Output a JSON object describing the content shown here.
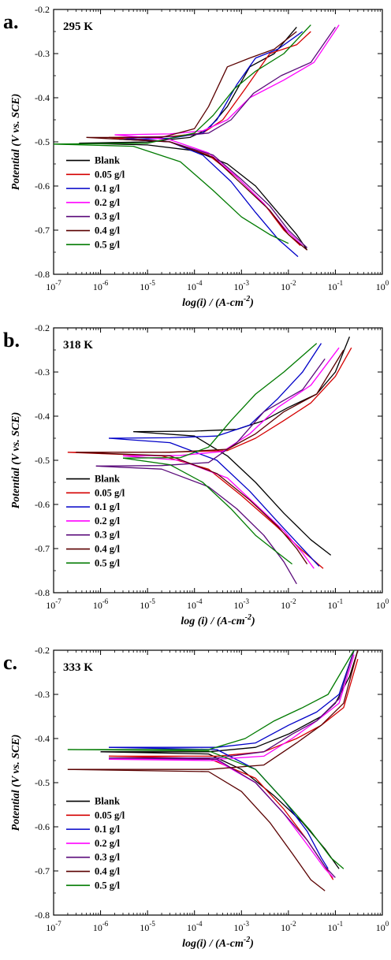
{
  "chart_data": [
    {
      "type": "line",
      "panel_label": "a.",
      "annotation": "295 K",
      "xlabel": "log(i) / (A-cm",
      "xlabel_sup": "-2",
      "xlabel_close": ")",
      "ylabel": "Potential (V vs. SCE)",
      "xscale": "log",
      "xlim": [
        1e-07,
        1
      ],
      "ylim": [
        -0.8,
        -0.2
      ],
      "xtick_exponents": [
        "-7",
        "-6",
        "-5",
        "-4",
        "-3",
        "-2",
        "-1",
        "0"
      ],
      "ytick_labels": [
        "-0.2",
        "-0.3",
        "-0.4",
        "-0.5",
        "-0.6",
        "-0.7",
        "-0.8"
      ],
      "legend_position": "bottom-left",
      "grid": false,
      "series": [
        {
          "name": "Blank",
          "color": "#000000",
          "x": [
            3.5e-07,
            1e-05,
            8e-05,
            0.0002,
            0.0005,
            0.0015,
            0.005,
            0.015
          ],
          "y": [
            -0.503,
            -0.5,
            -0.49,
            -0.47,
            -0.42,
            -0.33,
            -0.3,
            -0.24
          ],
          "x_cat": [
            3.5e-07,
            1e-05,
            0.0001,
            0.0005,
            0.002,
            0.006,
            0.015,
            0.025
          ],
          "y_cat": [
            -0.503,
            -0.507,
            -0.52,
            -0.55,
            -0.6,
            -0.66,
            -0.71,
            -0.745
          ]
        },
        {
          "name": "0.05 g/l",
          "color": "#d40000",
          "x": [
            1.5e-06,
            3e-05,
            0.00015,
            0.0004,
            0.0012,
            0.004,
            0.015,
            0.03
          ],
          "y": [
            -0.49,
            -0.488,
            -0.48,
            -0.45,
            -0.38,
            -0.3,
            -0.28,
            -0.25
          ],
          "x_cat": [
            1.5e-06,
            3e-05,
            0.0002,
            0.0008,
            0.003,
            0.008,
            0.018
          ],
          "y_cat": [
            -0.49,
            -0.5,
            -0.53,
            -0.58,
            -0.64,
            -0.7,
            -0.735
          ]
        },
        {
          "name": "0.1 g/l",
          "color": "#0000c8",
          "x": [
            2.5e-06,
            3e-05,
            0.00015,
            0.0003,
            0.0008,
            0.002,
            0.006,
            0.02
          ],
          "y": [
            -0.494,
            -0.492,
            -0.48,
            -0.45,
            -0.37,
            -0.31,
            -0.29,
            -0.25
          ],
          "x_cat": [
            2.5e-06,
            3e-05,
            0.00015,
            0.0006,
            0.002,
            0.006,
            0.016
          ],
          "y_cat": [
            -0.494,
            -0.5,
            -0.53,
            -0.59,
            -0.66,
            -0.72,
            -0.76
          ]
        },
        {
          "name": "0.2 g/l",
          "color": "#ff00ff",
          "x": [
            2e-06,
            3e-05,
            0.00015,
            0.0005,
            0.0015,
            0.008,
            0.035,
            0.12
          ],
          "y": [
            -0.484,
            -0.482,
            -0.475,
            -0.45,
            -0.4,
            -0.36,
            -0.32,
            -0.235
          ],
          "x_cat": [
            2e-06,
            3e-05,
            0.0002,
            0.0008,
            0.003,
            0.009,
            0.02
          ],
          "y_cat": [
            -0.484,
            -0.495,
            -0.525,
            -0.58,
            -0.64,
            -0.7,
            -0.735
          ]
        },
        {
          "name": "0.3 g/l",
          "color": "#5a0a7a",
          "x": [
            3e-06,
            4e-05,
            0.0002,
            0.0006,
            0.0018,
            0.007,
            0.03,
            0.1
          ],
          "y": [
            -0.49,
            -0.488,
            -0.48,
            -0.45,
            -0.39,
            -0.35,
            -0.32,
            -0.24
          ],
          "x_cat": [
            3e-06,
            3e-05,
            0.00025,
            0.001,
            0.004,
            0.01,
            0.025
          ],
          "y_cat": [
            -0.49,
            -0.5,
            -0.53,
            -0.585,
            -0.645,
            -0.7,
            -0.74
          ]
        },
        {
          "name": "0.4 g/l",
          "color": "#5a0000",
          "x": [
            5e-07,
            2e-05,
            0.0001,
            0.0002,
            0.0005,
            0.0015,
            0.005,
            0.015
          ],
          "y": [
            -0.49,
            -0.49,
            -0.47,
            -0.42,
            -0.33,
            -0.31,
            -0.29,
            -0.25
          ],
          "x_cat": [
            5e-07,
            3e-05,
            0.00025,
            0.001,
            0.004,
            0.01,
            0.025
          ],
          "y_cat": [
            -0.49,
            -0.5,
            -0.535,
            -0.595,
            -0.655,
            -0.71,
            -0.745
          ]
        },
        {
          "name": "0.5 g/l",
          "color": "#007a00",
          "x": [
            1e-07,
            1e-05,
            0.0001,
            0.00025,
            0.0007,
            0.002,
            0.008,
            0.03
          ],
          "y": [
            -0.505,
            -0.503,
            -0.48,
            -0.44,
            -0.38,
            -0.34,
            -0.3,
            -0.235
          ],
          "x_cat": [
            1e-07,
            5e-06,
            5e-05,
            0.00025,
            0.001,
            0.004,
            0.01
          ],
          "y_cat": [
            -0.505,
            -0.51,
            -0.545,
            -0.61,
            -0.67,
            -0.71,
            -0.73
          ]
        }
      ]
    },
    {
      "type": "line",
      "panel_label": "b.",
      "annotation": "318 K",
      "xlabel": "log (i) / (A-cm",
      "xlabel_sup": "-2",
      "xlabel_close": ")",
      "ylabel": "Potential (V vs. SCE)",
      "xscale": "log",
      "xlim": [
        1e-07,
        1
      ],
      "ylim": [
        -0.8,
        -0.2
      ],
      "xtick_exponents": [
        "-7",
        "-6",
        "-5",
        "-4",
        "-3",
        "-2",
        "-1",
        "0"
      ],
      "ytick_labels": [
        "-0.2",
        "-0.3",
        "-0.4",
        "-0.5",
        "-0.6",
        "-0.7",
        "-0.8"
      ],
      "legend_position": "bottom-left",
      "grid": false,
      "series": [
        {
          "name": "Blank",
          "color": "#000000",
          "x": [
            5e-06,
            0.0001,
            0.0008,
            0.003,
            0.01,
            0.04,
            0.1,
            0.2
          ],
          "y": [
            -0.435,
            -0.434,
            -0.43,
            -0.41,
            -0.38,
            -0.35,
            -0.3,
            -0.22
          ],
          "x_cat": [
            5e-06,
            0.0001,
            0.0005,
            0.002,
            0.008,
            0.03,
            0.08
          ],
          "y_cat": [
            -0.435,
            -0.445,
            -0.49,
            -0.55,
            -0.62,
            -0.68,
            -0.715
          ]
        },
        {
          "name": "0.05 g/l",
          "color": "#d40000",
          "x": [
            2e-07,
            2e-05,
            0.0005,
            0.002,
            0.008,
            0.03,
            0.1,
            0.22
          ],
          "y": [
            -0.482,
            -0.482,
            -0.478,
            -0.45,
            -0.41,
            -0.37,
            -0.31,
            -0.245
          ],
          "x_cat": [
            2e-07,
            2e-05,
            0.0002,
            0.001,
            0.005,
            0.02,
            0.055
          ],
          "y_cat": [
            -0.482,
            -0.49,
            -0.52,
            -0.58,
            -0.645,
            -0.705,
            -0.745
          ]
        },
        {
          "name": "0.1 g/l",
          "color": "#0000c8",
          "x": [
            1.5e-06,
            3e-05,
            0.0003,
            0.0015,
            0.006,
            0.02,
            0.05
          ],
          "y": [
            -0.45,
            -0.449,
            -0.445,
            -0.42,
            -0.36,
            -0.3,
            -0.235
          ],
          "x_cat": [
            1.5e-06,
            3e-05,
            0.0003,
            0.0015,
            0.006,
            0.02,
            0.045
          ],
          "y_cat": [
            -0.45,
            -0.46,
            -0.5,
            -0.57,
            -0.64,
            -0.7,
            -0.74
          ]
        },
        {
          "name": "0.2 g/l",
          "color": "#ff00ff",
          "x": [
            3e-06,
            5e-05,
            0.0004,
            0.0015,
            0.006,
            0.03,
            0.12
          ],
          "y": [
            -0.49,
            -0.489,
            -0.48,
            -0.44,
            -0.38,
            -0.33,
            -0.245
          ],
          "x_cat": [
            3e-06,
            5e-05,
            0.0005,
            0.002,
            0.008,
            0.02,
            0.035
          ],
          "y_cat": [
            -0.49,
            -0.5,
            -0.54,
            -0.6,
            -0.66,
            -0.71,
            -0.745
          ]
        },
        {
          "name": "0.3 g/l",
          "color": "#5a0a7a",
          "x": [
            8e-07,
            2e-05,
            0.0002,
            0.0008,
            0.003,
            0.02,
            0.06
          ],
          "y": [
            -0.513,
            -0.512,
            -0.505,
            -0.46,
            -0.39,
            -0.34,
            -0.27
          ],
          "x_cat": [
            8e-07,
            2e-05,
            0.0002,
            0.0008,
            0.003,
            0.008,
            0.015
          ],
          "y_cat": [
            -0.513,
            -0.52,
            -0.56,
            -0.61,
            -0.67,
            -0.73,
            -0.78
          ]
        },
        {
          "name": "0.4 g/l",
          "color": "#5a0000",
          "x": [
            3e-07,
            3e-05,
            0.0005,
            0.002,
            0.008,
            0.04,
            0.15
          ],
          "y": [
            -0.482,
            -0.482,
            -0.475,
            -0.44,
            -0.39,
            -0.35,
            -0.25
          ],
          "x_cat": [
            3e-07,
            3e-05,
            0.0003,
            0.0015,
            0.006,
            0.015,
            0.025
          ],
          "y_cat": [
            -0.482,
            -0.49,
            -0.53,
            -0.59,
            -0.65,
            -0.7,
            -0.735
          ]
        },
        {
          "name": "0.5 g/l",
          "color": "#007a00",
          "x": [
            3e-06,
            5e-05,
            0.0002,
            0.0006,
            0.002,
            0.008,
            0.04
          ],
          "y": [
            -0.495,
            -0.494,
            -0.47,
            -0.41,
            -0.35,
            -0.3,
            -0.235
          ],
          "x_cat": [
            3e-06,
            3e-05,
            0.00015,
            0.0006,
            0.002,
            0.006,
            0.012
          ],
          "y_cat": [
            -0.495,
            -0.51,
            -0.55,
            -0.61,
            -0.67,
            -0.71,
            -0.735
          ]
        }
      ]
    },
    {
      "type": "line",
      "panel_label": "c.",
      "annotation": "333 K",
      "xlabel": "log(i) / (A-cm",
      "xlabel_sup": "-2",
      "xlabel_close": ")",
      "ylabel": "Potential (V vs. SCE)",
      "xscale": "log",
      "xlim": [
        1e-07,
        1
      ],
      "ylim": [
        -0.8,
        -0.2
      ],
      "xtick_exponents": [
        "-7",
        "-6",
        "-5",
        "-4",
        "-3",
        "-2",
        "-1",
        "0"
      ],
      "ytick_labels": [
        "-0.2",
        "-0.3",
        "-0.4",
        "-0.5",
        "-0.6",
        "-0.7",
        "-0.8"
      ],
      "legend_position": "bottom-left",
      "grid": false,
      "series": [
        {
          "name": "Blank",
          "color": "#000000",
          "x": [
            1e-06,
            0.0002,
            0.002,
            0.01,
            0.05,
            0.1,
            0.2,
            0.3
          ],
          "y": [
            -0.43,
            -0.43,
            -0.42,
            -0.39,
            -0.35,
            -0.32,
            -0.26,
            -0.2
          ],
          "x_cat": [
            1e-06,
            0.0002,
            0.001,
            0.005,
            0.02,
            0.06,
            0.12
          ],
          "y_cat": [
            -0.43,
            -0.435,
            -0.47,
            -0.53,
            -0.59,
            -0.65,
            -0.695
          ]
        },
        {
          "name": "0.05 g/l",
          "color": "#d40000",
          "x": [
            1.5e-06,
            0.0003,
            0.003,
            0.015,
            0.05,
            0.15,
            0.3
          ],
          "y": [
            -0.44,
            -0.44,
            -0.43,
            -0.4,
            -0.37,
            -0.33,
            -0.22
          ],
          "x_cat": [
            1.5e-06,
            0.0002,
            0.002,
            0.008,
            0.025,
            0.06,
            0.09
          ],
          "y_cat": [
            -0.44,
            -0.445,
            -0.49,
            -0.56,
            -0.63,
            -0.69,
            -0.72
          ]
        },
        {
          "name": "0.1 g/l",
          "color": "#0000c8",
          "x": [
            1.5e-06,
            0.0003,
            0.002,
            0.01,
            0.04,
            0.12,
            0.25
          ],
          "y": [
            -0.42,
            -0.42,
            -0.41,
            -0.37,
            -0.34,
            -0.3,
            -0.2
          ],
          "x_cat": [
            1.5e-06,
            0.0003,
            0.002,
            0.008,
            0.025,
            0.05,
            0.07
          ],
          "y_cat": [
            -0.42,
            -0.425,
            -0.47,
            -0.54,
            -0.61,
            -0.67,
            -0.695
          ]
        },
        {
          "name": "0.2 g/l",
          "color": "#ff00ff",
          "x": [
            1.5e-06,
            0.0003,
            0.003,
            0.012,
            0.04,
            0.12,
            0.25
          ],
          "y": [
            -0.447,
            -0.447,
            -0.44,
            -0.4,
            -0.36,
            -0.32,
            -0.21
          ],
          "x_cat": [
            1.5e-06,
            0.0003,
            0.002,
            0.008,
            0.025,
            0.06,
            0.09
          ],
          "y_cat": [
            -0.447,
            -0.45,
            -0.5,
            -0.57,
            -0.64,
            -0.695,
            -0.715
          ]
        },
        {
          "name": "0.3 g/l",
          "color": "#5a0a7a",
          "x": [
            1.5e-06,
            0.0003,
            0.003,
            0.012,
            0.04,
            0.12,
            0.25
          ],
          "y": [
            -0.444,
            -0.444,
            -0.43,
            -0.39,
            -0.36,
            -0.31,
            -0.2
          ],
          "x_cat": [
            1.5e-06,
            0.0003,
            0.002,
            0.008,
            0.025,
            0.06,
            0.1
          ],
          "y_cat": [
            -0.444,
            -0.447,
            -0.5,
            -0.57,
            -0.63,
            -0.69,
            -0.715
          ]
        },
        {
          "name": "0.4 g/l",
          "color": "#5a0000",
          "x": [
            2e-07,
            0.0002,
            0.003,
            0.015,
            0.05,
            0.15,
            0.3
          ],
          "y": [
            -0.47,
            -0.47,
            -0.46,
            -0.41,
            -0.37,
            -0.32,
            -0.2
          ],
          "x_cat": [
            2e-07,
            0.0002,
            0.001,
            0.004,
            0.012,
            0.03,
            0.06
          ],
          "y_cat": [
            -0.47,
            -0.475,
            -0.52,
            -0.59,
            -0.66,
            -0.72,
            -0.745
          ]
        },
        {
          "name": "0.5 g/l",
          "color": "#007a00",
          "x": [
            2e-07,
            0.0002,
            0.0012,
            0.005,
            0.02,
            0.07,
            0.25
          ],
          "y": [
            -0.425,
            -0.425,
            -0.4,
            -0.36,
            -0.33,
            -0.3,
            -0.2
          ],
          "x_cat": [
            2e-07,
            0.0002,
            0.002,
            0.008,
            0.03,
            0.08,
            0.15
          ],
          "y_cat": [
            -0.425,
            -0.428,
            -0.47,
            -0.54,
            -0.61,
            -0.67,
            -0.695
          ]
        }
      ]
    }
  ]
}
